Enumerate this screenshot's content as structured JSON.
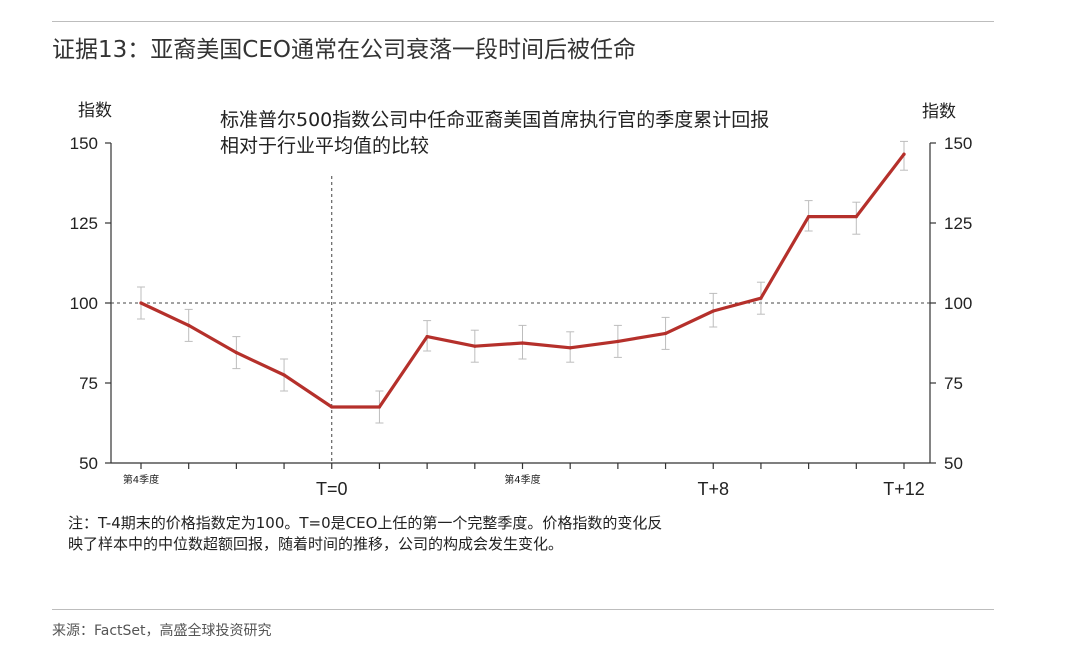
{
  "page": {
    "heading": "证据13：亚裔美国CEO通常在公司衰落一段时间后被任命",
    "note_line1": "注：T-4期末的价格指数定为100。T=0是CEO上任的第一个完整季度。价格指数的变化反",
    "note_line2": "映了样本中的中位数超额回报，随着时间的推移，公司的构成会发生变化。",
    "source": "来源：FactSet，高盛全球投资研究"
  },
  "chart_data": {
    "type": "line",
    "title": "标准普尔500指数公司中任命亚裔美国首席执行官的季度累计回报",
    "subtitle": "相对于行业平均值的比较",
    "ylabel_left": "指数",
    "ylabel_right": "指数",
    "ylim": [
      50,
      150
    ],
    "yticks": [
      50,
      75,
      100,
      125,
      150
    ],
    "x": [
      -4,
      -3,
      -2,
      -1,
      0,
      1,
      2,
      3,
      4,
      5,
      6,
      7,
      8,
      9,
      10,
      11,
      12
    ],
    "xlim": [
      -4,
      12
    ],
    "x_tick_positions": [
      -4,
      -3,
      -2,
      -1,
      0,
      1,
      2,
      3,
      4,
      5,
      6,
      7,
      8,
      9,
      10,
      11,
      12
    ],
    "x_tick_labels": [
      {
        "x": -4,
        "text": "第4季度",
        "small": true
      },
      {
        "x": 0,
        "text": "T=0",
        "small": false
      },
      {
        "x": 4,
        "text": "第4季度",
        "small": true
      },
      {
        "x": 8,
        "text": "T+8",
        "small": false
      },
      {
        "x": 12,
        "text": "T+12",
        "small": false
      }
    ],
    "series": [
      {
        "values": [
          100,
          93,
          84.5,
          77.5,
          67.5,
          67.5,
          89.5,
          86.5,
          87.5,
          86,
          88,
          90.5,
          97.5,
          101.5,
          127,
          127,
          146.5
        ],
        "error_low": [
          95,
          88,
          79.5,
          72.5,
          67.5,
          62.5,
          85,
          81.5,
          82.5,
          81.5,
          83,
          85.5,
          92.5,
          96.5,
          122.5,
          121.5,
          141.5
        ],
        "error_high": [
          105,
          98,
          89.5,
          82.5,
          67.5,
          72.5,
          94.5,
          91.5,
          93,
          91,
          93,
          95.5,
          103,
          106.5,
          132,
          131.5,
          150.5
        ]
      }
    ],
    "reference_line_y": 100,
    "reference_line_x": 0,
    "grid": false,
    "colors": {
      "line": "#b5302b",
      "error_bar": "#bdbdbd",
      "axis": "#333333"
    }
  }
}
